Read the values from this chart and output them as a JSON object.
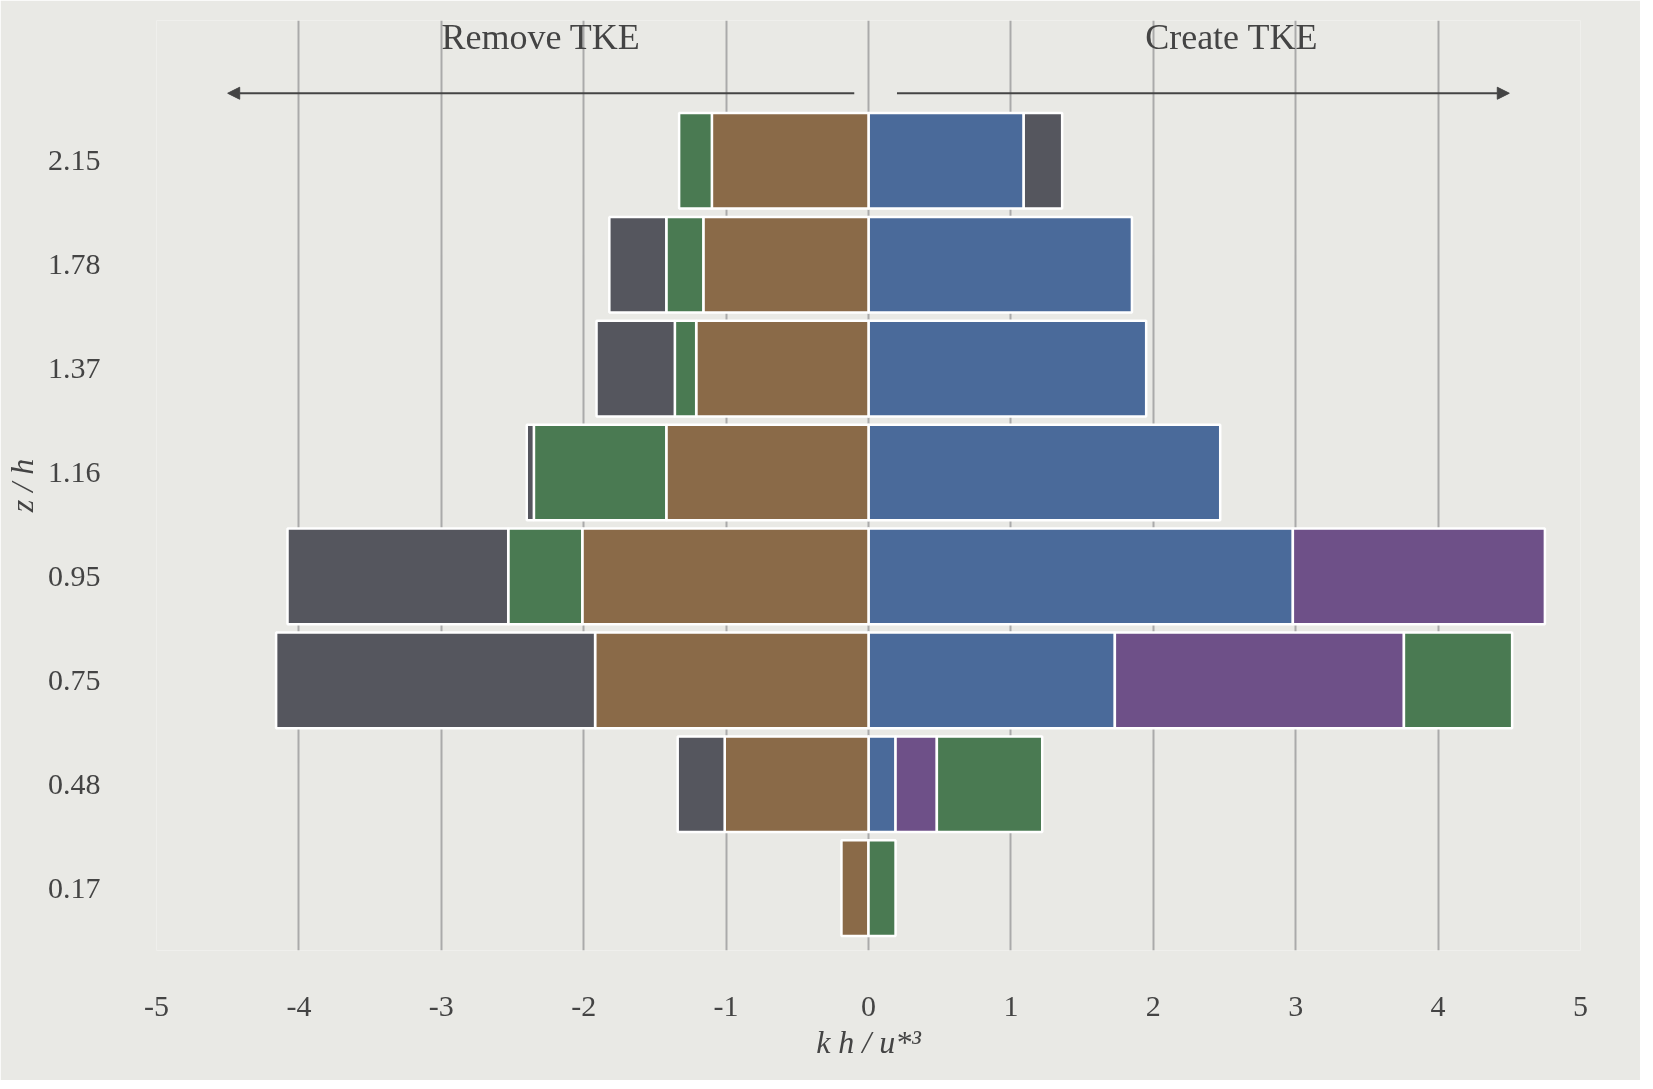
{
  "chart_data": {
    "type": "bar",
    "orientation": "horizontal",
    "stacked": true,
    "xlabel": "k h / u*³",
    "ylabel": "z / h",
    "categories": [
      "2.15",
      "1.78",
      "1.37",
      "1.16",
      "0.95",
      "0.75",
      "0.48",
      "0.17"
    ],
    "series": [
      {
        "color": "#4a6a9a",
        "values": [
          1.09,
          1.85,
          1.95,
          2.47,
          2.98,
          1.73,
          0.19,
          null
        ]
      },
      {
        "color": "#8a6a48",
        "values": [
          -1.1,
          -1.16,
          -1.21,
          -1.42,
          -2.01,
          -1.92,
          -1.01,
          -0.19
        ]
      },
      {
        "color": "#6e5088",
        "values": [
          null,
          null,
          null,
          null,
          1.77,
          2.03,
          0.29,
          null
        ]
      },
      {
        "color": "#4a7a52",
        "values": [
          -0.23,
          -0.26,
          -0.15,
          -0.93,
          -0.52,
          0.76,
          0.74,
          0.19
        ]
      },
      {
        "color": "#55565e",
        "values": [
          0.27,
          -0.4,
          -0.55,
          -0.05,
          -1.55,
          -2.24,
          -0.33,
          null
        ]
      }
    ],
    "xlim": [
      -5,
      5
    ],
    "xticks": [
      -5,
      -4,
      -3,
      -2,
      -1,
      0,
      1,
      2,
      3,
      4,
      5
    ],
    "grid": "x",
    "annotations": [
      "Remove TKE",
      "Create TKE"
    ]
  }
}
